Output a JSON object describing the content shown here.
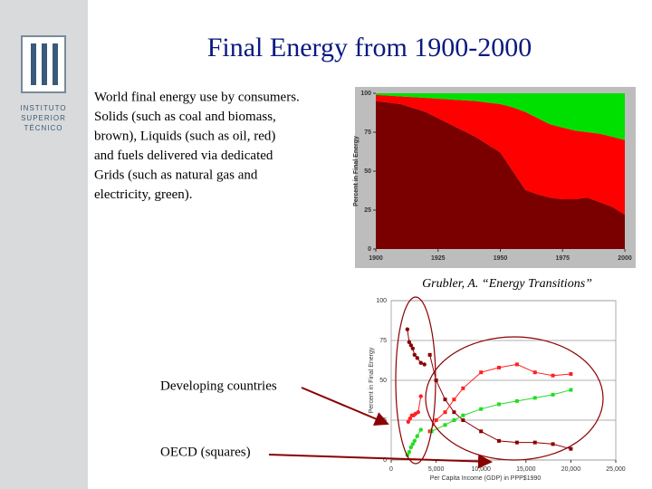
{
  "title": "Final Energy from 1900-2000",
  "logo": {
    "lines": [
      "INSTITUTO",
      "SUPERIOR",
      "TÉCNICO"
    ]
  },
  "description": [
    "World final energy use by consumers.",
    "Solids (such as coal and biomass,",
    "brown), Liquids (such as oil, red)",
    "and fuels delivered via dedicated",
    "Grids (such as natural gas and",
    "electricity, green)."
  ],
  "caption": "Grubler, A. “Energy Transitions”",
  "annotations": [
    "Developing countries",
    "OECD (squares)"
  ],
  "chart_data": [
    {
      "type": "area",
      "stacked": true,
      "y_label": "Percent in Final Energy",
      "x": [
        1900,
        1910,
        1920,
        1930,
        1940,
        1950,
        1955,
        1960,
        1965,
        1970,
        1975,
        1980,
        1985,
        1990,
        1995,
        2000
      ],
      "series": [
        {
          "color": "#7a0000",
          "values": [
            95,
            93,
            88,
            80,
            72,
            62,
            50,
            38,
            35,
            33,
            32,
            32,
            33,
            30,
            27,
            22
          ]
        },
        {
          "color": "#ff0000",
          "values": [
            4,
            5,
            9,
            16,
            23,
            31,
            41,
            50,
            49,
            47,
            46,
            44,
            42,
            44,
            45,
            48
          ]
        },
        {
          "color": "#00e000",
          "values": [
            1,
            2,
            3,
            4,
            5,
            7,
            9,
            12,
            16,
            20,
            22,
            24,
            25,
            26,
            28,
            30
          ]
        }
      ],
      "xlim": [
        1900,
        2000
      ],
      "xticks": [
        1900,
        1925,
        1950,
        1975,
        2000
      ],
      "ylim": [
        0,
        100
      ],
      "yticks": [
        0,
        25,
        50,
        75,
        100
      ]
    },
    {
      "type": "scatter",
      "y_label": "Percent in Final Energy",
      "x_label": "Per Capita Income (GDP) in PPP$1990",
      "grid": true,
      "series": [
        {
          "color": "#8b0000",
          "marker": "circle",
          "x": [
            1800,
            2000,
            2200,
            2400,
            2600,
            2900,
            3300,
            3700
          ],
          "values": [
            82,
            74,
            72,
            70,
            66,
            64,
            61,
            60
          ]
        },
        {
          "color": "#ff2020",
          "marker": "circle",
          "x": [
            1900,
            2100,
            2300,
            2500,
            2700,
            3000,
            3300
          ],
          "values": [
            24,
            26,
            28,
            28,
            29,
            30,
            40
          ]
        },
        {
          "color": "#22dd22",
          "marker": "circle",
          "x": [
            1800,
            2000,
            2200,
            2400,
            2600,
            2900,
            3300
          ],
          "values": [
            3,
            5,
            8,
            10,
            12,
            15,
            19
          ]
        },
        {
          "color": "#8b0000",
          "marker": "square",
          "x": [
            4300,
            5000,
            6000,
            7000,
            8000,
            10000,
            12000,
            14000,
            16000,
            18000,
            20000
          ],
          "values": [
            66,
            50,
            38,
            30,
            25,
            18,
            12,
            11,
            11,
            10,
            7
          ]
        },
        {
          "color": "#ff2020",
          "marker": "square",
          "x": [
            4300,
            5000,
            6000,
            7000,
            8000,
            10000,
            12000,
            14000,
            16000,
            18000,
            20000
          ],
          "values": [
            18,
            25,
            30,
            38,
            45,
            55,
            58,
            60,
            55,
            53,
            54
          ]
        },
        {
          "color": "#22dd22",
          "marker": "square",
          "x": [
            4500,
            6000,
            7000,
            8000,
            10000,
            12000,
            14000,
            16000,
            18000,
            20000
          ],
          "values": [
            18,
            22,
            25,
            28,
            32,
            35,
            37,
            39,
            41,
            44
          ]
        }
      ],
      "xlim": [
        0,
        25000
      ],
      "xticks": [
        0,
        {
          "value": 5000,
          "label": "5,000"
        },
        {
          "value": 10000,
          "label": "10,000"
        },
        {
          "value": 15000,
          "label": "15,000"
        },
        {
          "value": 20000,
          "label": "20,000"
        },
        {
          "value": 25000,
          "label": "25,000"
        }
      ],
      "ylim": [
        0,
        100
      ],
      "yticks": [
        0,
        25,
        50,
        75,
        100
      ]
    }
  ]
}
